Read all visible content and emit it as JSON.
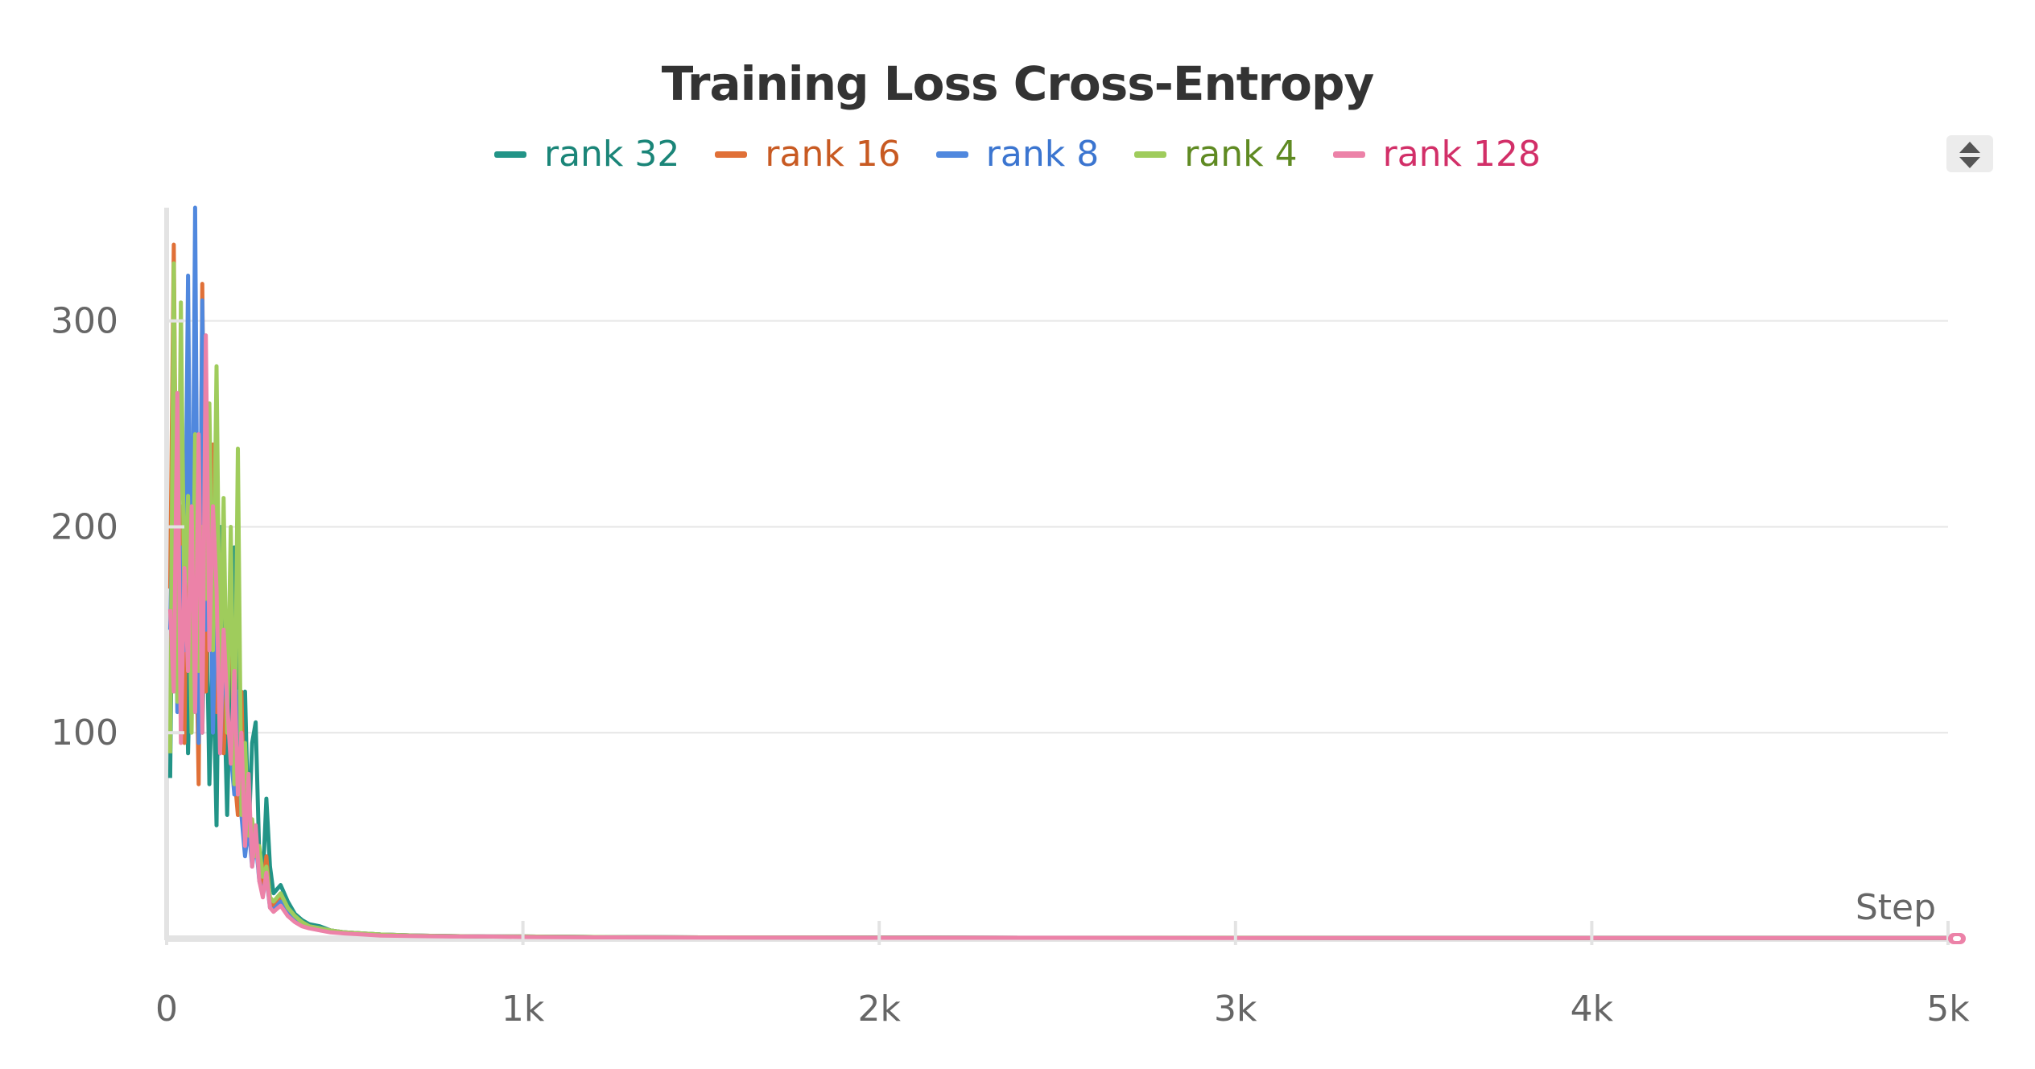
{
  "chart_data": {
    "type": "line",
    "title": "Training Loss Cross-Entropy",
    "xlabel": "Step",
    "ylabel": "",
    "xlim": [
      0,
      5000
    ],
    "ylim": [
      0,
      355
    ],
    "x_ticks": [
      {
        "value": 0,
        "label": "0"
      },
      {
        "value": 1000,
        "label": "1k"
      },
      {
        "value": 2000,
        "label": "2k"
      },
      {
        "value": 3000,
        "label": "3k"
      },
      {
        "value": 4000,
        "label": "4k"
      },
      {
        "value": 5000,
        "label": "5k"
      }
    ],
    "y_ticks": [
      {
        "value": 100,
        "label": "100"
      },
      {
        "value": 200,
        "label": "200"
      },
      {
        "value": 300,
        "label": "300"
      }
    ],
    "grid": true,
    "legend_position": "top-center",
    "series": [
      {
        "name": "rank 32",
        "color": "#229487",
        "label_color": "#1a8578",
        "x": [
          10,
          20,
          30,
          40,
          50,
          60,
          70,
          80,
          90,
          100,
          110,
          120,
          130,
          140,
          150,
          160,
          170,
          180,
          190,
          200,
          210,
          220,
          230,
          240,
          250,
          260,
          270,
          280,
          290,
          300,
          320,
          340,
          360,
          380,
          400,
          430,
          460,
          500,
          550,
          600,
          700,
          800,
          900,
          1000,
          1200,
          1500,
          2000,
          2500,
          3000,
          3500,
          4000,
          4500,
          5000
        ],
        "y": [
          78,
          246,
          150,
          120,
          200,
          90,
          170,
          110,
          230,
          100,
          185,
          75,
          140,
          55,
          200,
          130,
          60,
          140,
          190,
          110,
          70,
          120,
          50,
          95,
          105,
          40,
          28,
          68,
          35,
          22,
          26,
          18,
          12,
          9,
          7,
          6,
          4,
          3,
          2.5,
          2,
          1.5,
          1.2,
          1,
          1,
          0.8,
          0.6,
          0.5,
          0.4,
          0.4,
          0.3,
          0.3,
          0.3,
          0.3
        ]
      },
      {
        "name": "rank 16",
        "color": "#e07037",
        "label_color": "#c85a22",
        "x": [
          10,
          20,
          30,
          40,
          50,
          60,
          70,
          80,
          90,
          100,
          110,
          120,
          130,
          140,
          150,
          160,
          170,
          180,
          190,
          200,
          210,
          220,
          230,
          240,
          250,
          260,
          270,
          280,
          290,
          300,
          320,
          340,
          360,
          380,
          400,
          430,
          460,
          500,
          550,
          600,
          700,
          800,
          900,
          1000,
          1200,
          1500,
          2000,
          2500,
          3000,
          3500,
          4000,
          4500,
          5000
        ],
        "y": [
          170,
          337,
          130,
          210,
          95,
          260,
          150,
          180,
          75,
          318,
          120,
          200,
          240,
          110,
          160,
          90,
          130,
          170,
          80,
          60,
          120,
          45,
          70,
          38,
          52,
          30,
          25,
          40,
          18,
          16,
          20,
          14,
          10,
          8,
          6,
          5,
          4,
          3,
          2.5,
          2,
          1.5,
          1.2,
          1,
          1,
          0.8,
          0.6,
          0.5,
          0.4,
          0.4,
          0.3,
          0.3,
          0.3,
          0.3
        ]
      },
      {
        "name": "rank 8",
        "color": "#5088de",
        "label_color": "#3b75d0",
        "x": [
          10,
          20,
          30,
          40,
          50,
          60,
          70,
          80,
          90,
          100,
          110,
          120,
          130,
          140,
          150,
          160,
          170,
          180,
          190,
          200,
          210,
          220,
          230,
          240,
          250,
          260,
          270,
          280,
          290,
          300,
          320,
          340,
          360,
          380,
          400,
          430,
          460,
          500,
          550,
          600,
          700,
          800,
          900,
          1000,
          1200,
          1500,
          2000,
          2500,
          3000,
          3500,
          4000,
          4500,
          5000
        ],
        "y": [
          150,
          230,
          110,
          190,
          140,
          322,
          120,
          355,
          95,
          310,
          150,
          230,
          100,
          180,
          90,
          140,
          110,
          90,
          70,
          120,
          60,
          40,
          55,
          35,
          48,
          28,
          22,
          30,
          15,
          14,
          18,
          12,
          9,
          7,
          6,
          5,
          4,
          3,
          2.5,
          2,
          1.5,
          1.2,
          1,
          1,
          0.8,
          0.6,
          0.5,
          0.4,
          0.4,
          0.3,
          0.3,
          0.3,
          0.3
        ]
      },
      {
        "name": "rank 4",
        "color": "#9fcc5c",
        "label_color": "#5f8a22",
        "x": [
          10,
          20,
          30,
          40,
          50,
          60,
          70,
          80,
          90,
          100,
          110,
          120,
          130,
          140,
          150,
          160,
          170,
          180,
          190,
          200,
          210,
          220,
          230,
          240,
          250,
          260,
          270,
          280,
          290,
          300,
          320,
          340,
          360,
          380,
          400,
          430,
          460,
          500,
          550,
          600,
          700,
          800,
          900,
          1000,
          1200,
          1500,
          2000,
          2500,
          3000,
          3500,
          4000,
          4500,
          5000
        ],
        "y": [
          90,
          328,
          115,
          309,
          160,
          215,
          100,
          245,
          130,
          200,
          165,
          260,
          140,
          278,
          120,
          214,
          100,
          200,
          75,
          238,
          60,
          95,
          50,
          58,
          40,
          45,
          30,
          35,
          20,
          18,
          22,
          15,
          11,
          8,
          6,
          5,
          4,
          3,
          2.5,
          2,
          1.5,
          1.2,
          1,
          1,
          0.8,
          0.6,
          0.5,
          0.4,
          0.4,
          0.3,
          0.3,
          0.3,
          0.3
        ]
      },
      {
        "name": "rank 128",
        "color": "#ec82a8",
        "label_color": "#d22f68",
        "x": [
          10,
          20,
          30,
          40,
          50,
          60,
          70,
          80,
          90,
          100,
          110,
          120,
          130,
          140,
          150,
          160,
          170,
          180,
          190,
          200,
          210,
          220,
          230,
          240,
          250,
          260,
          270,
          280,
          290,
          300,
          320,
          340,
          360,
          380,
          400,
          430,
          460,
          500,
          550,
          600,
          700,
          800,
          900,
          1000,
          1200,
          1500,
          2000,
          2500,
          3000,
          3500,
          4000,
          4500,
          5000
        ],
        "y": [
          160,
          120,
          265,
          95,
          180,
          130,
          210,
          110,
          245,
          100,
          293,
          140,
          210,
          170,
          90,
          150,
          115,
          85,
          130,
          70,
          100,
          45,
          80,
          35,
          55,
          28,
          20,
          32,
          15,
          13,
          16,
          11,
          8,
          6,
          5,
          4,
          3,
          2.5,
          2,
          1.5,
          1.2,
          1,
          1,
          0.8,
          0.6,
          0.5,
          0.4,
          0.4,
          0.3,
          0.3,
          0.3,
          0.3,
          0.3
        ]
      }
    ]
  }
}
